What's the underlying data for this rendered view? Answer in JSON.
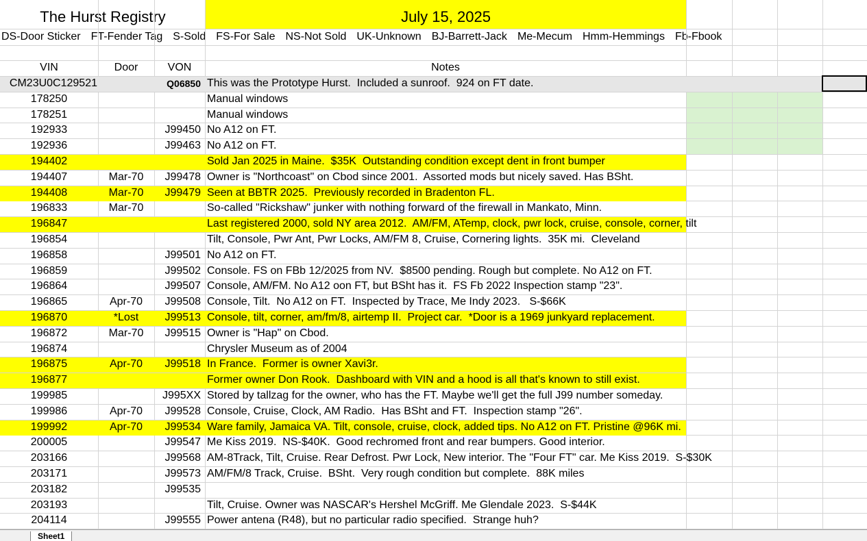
{
  "header": {
    "title": "The Hurst Registry",
    "date": "July 15, 2025",
    "legend": [
      "DS-Door Sticker",
      "FT-Fender Tag",
      "S-Sold",
      "FS-For Sale",
      "NS-Not Sold",
      "UK-Unknown",
      "BJ-Barrett-Jack",
      "Me-Mecum",
      "Hmm-Hemmings",
      "Fb-Fbook"
    ]
  },
  "table": {
    "columns": [
      "VIN",
      "Door",
      "VON",
      "Notes"
    ],
    "rows": [
      {
        "vin": "CM23U0C129521",
        "von": "Q06850",
        "notes": "This was the Prototype Hurst.  Included a sunroof.  924 on FT date.",
        "fill": "#e6e6e6"
      },
      {
        "vin": "178250",
        "notes": "Manual windows"
      },
      {
        "vin": "178251",
        "notes": "Manual windows"
      },
      {
        "vin": "192933",
        "von": "J99450",
        "notes": "No A12 on FT."
      },
      {
        "vin": "192936",
        "von": "J99463",
        "notes": "No A12 on FT."
      },
      {
        "vin": "194402",
        "notes": "Sold Jan 2025 in Maine.  $35K  Outstanding condition except dent in front bumper",
        "fill": "#ffff00"
      },
      {
        "vin": "194407",
        "door": "Mar-70",
        "von": "J99478",
        "notes": "Owner is \"Northcoast\" on Cbod since 2001.  Assorted mods but nicely saved. Has BSht."
      },
      {
        "vin": "194408",
        "door": "Mar-70",
        "von": "J99479",
        "notes": "Seen at BBTR 2025.  Previously recorded in Bradenton FL.",
        "fill": "#ffff00"
      },
      {
        "vin": "196833",
        "door": "Mar-70",
        "notes": "So-called \"Rickshaw\" junker with nothing forward of the firewall in Mankato, Minn."
      },
      {
        "vin": "196847",
        "notes": "Last registered 2000, sold NY area 2012.  AM/FM, ATemp, clock, pwr lock, cruise, console, corner, tilt",
        "fill": "#ffff00"
      },
      {
        "vin": "196854",
        "notes": "Tilt, Console, Pwr Ant, Pwr Locks, AM/FM 8, Cruise, Cornering lights.  35K mi.  Cleveland"
      },
      {
        "vin": "196858",
        "von": "J99501",
        "notes": "No A12 on FT."
      },
      {
        "vin": "196859",
        "von": "J99502",
        "notes": "Console. FS on FBb 12/2025 from NV.  $8500 pending. Rough but complete. No A12 on FT."
      },
      {
        "vin": "196864",
        "von": "J99507",
        "notes": "Console, AM/FM. No A12 oon FT, but BSht has it.  FS Fb 2022 Inspection stamp \"23\"."
      },
      {
        "vin": "196865",
        "door": "Apr-70",
        "von": "J99508",
        "notes": "Console, Tilt.  No A12 on FT.  Inspected by Trace, Me Indy 2023.   S-$66K"
      },
      {
        "vin": "196870",
        "door": "*Lost",
        "von": "J99513",
        "notes": "Console, tilt, corner, am/fm/8, airtemp II.  Project car.  *Door is a 1969 junkyard replacement.",
        "fill": "#ffff00"
      },
      {
        "vin": "196872",
        "door": "Mar-70",
        "von": "J99515",
        "notes": "Owner is \"Hap\" on Cbod."
      },
      {
        "vin": "196874",
        "notes": "Chrysler Museum as of 2004"
      },
      {
        "vin": "196875",
        "door": "Apr-70",
        "von": "J99518",
        "notes": "In France.  Former is owner Xavi3r.",
        "fill": "#ffff00"
      },
      {
        "vin": "196877",
        "notes": "Former owner Don Rook.  Dashboard with VIN and a hood is all that's known to still exist.",
        "fill": "#ffff00"
      },
      {
        "vin": "199985",
        "von": "J995XX",
        "notes": "Stored by tallzag for the owner, who has the FT. Maybe we'll get the full J99 number someday."
      },
      {
        "vin": "199986",
        "door": "Apr-70",
        "von": "J99528",
        "notes": "Console, Cruise, Clock, AM Radio.  Has BSht and FT.  Inspection stamp \"26\"."
      },
      {
        "vin": "199992",
        "door": "Apr-70",
        "von": "J99534",
        "notes": "Ware family, Jamaica VA. Tilt, console, cruise, clock, added tips. No A12 on FT. Pristine @96K mi.",
        "fill": "#ffff00"
      },
      {
        "vin": "200005",
        "von": "J99547",
        "notes": "Me Kiss 2019.  NS-$40K.  Good rechromed front and rear bumpers. Good interior."
      },
      {
        "vin": "203166",
        "von": "J99568",
        "notes": "AM-8Track, Tilt, Cruise. Rear Defrost. Pwr Lock, New interior. The \"Four FT\" car. Me Kiss 2019.  S-$30K"
      },
      {
        "vin": "203171",
        "von": "J99573",
        "notes": "AM/FM/8 Track, Cruise.  BSht.  Very rough condition but complete.  88K miles"
      },
      {
        "vin": "203182",
        "von": "J99535"
      },
      {
        "vin": "203193",
        "notes": "Tilt, Cruise. Owner was NASCAR's Hershel McGriff. Me Glendale 2023.  S-$44K"
      },
      {
        "vin": "204114",
        "von": "J99555",
        "notes": "Power antena (R48), but no particular radio specified.  Strange huh?"
      }
    ]
  },
  "sheet_tab": "Sheet1"
}
